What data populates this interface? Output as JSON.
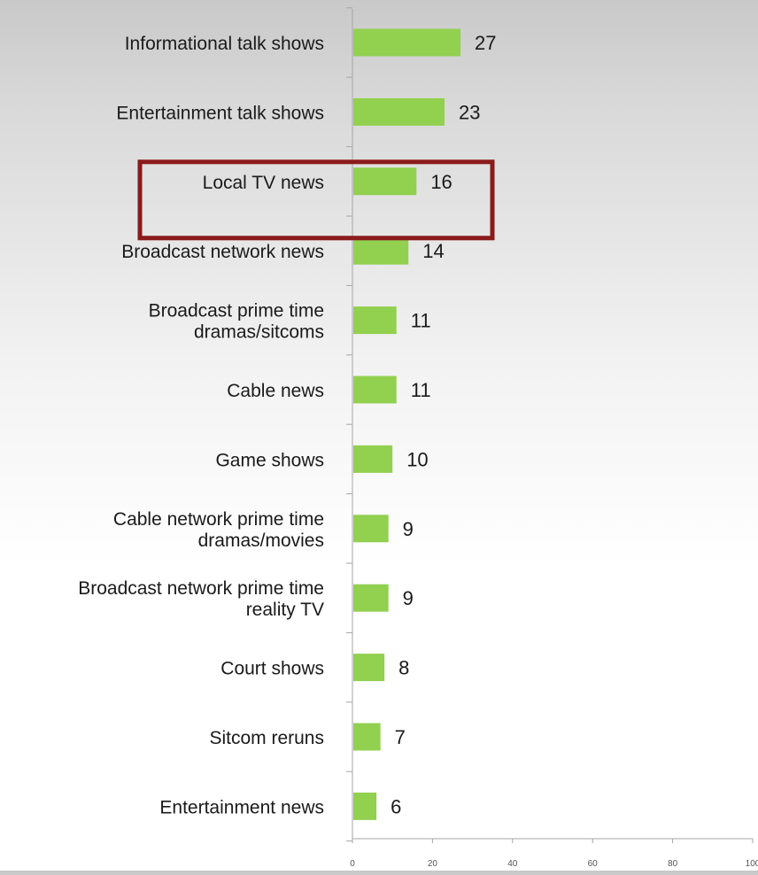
{
  "chart_data": {
    "type": "bar",
    "orientation": "horizontal",
    "categories": [
      [
        "Informational talk shows"
      ],
      [
        "Entertainment talk shows"
      ],
      [
        "Local TV news"
      ],
      [
        "Broadcast network news"
      ],
      [
        "Broadcast prime time",
        "dramas/sitcoms"
      ],
      [
        "Cable news"
      ],
      [
        "Game shows"
      ],
      [
        "Cable network prime time",
        "dramas/movies"
      ],
      [
        "Broadcast network prime time",
        "reality TV"
      ],
      [
        "Court shows"
      ],
      [
        "Sitcom reruns"
      ],
      [
        "Entertainment news"
      ]
    ],
    "values": [
      27,
      23,
      16,
      14,
      11,
      11,
      10,
      9,
      9,
      8,
      7,
      6
    ],
    "data_labels": [
      "27",
      "23",
      "16",
      "14",
      "11",
      "11",
      "10",
      "9",
      "9",
      "8",
      "7",
      "6"
    ],
    "xlim": [
      0,
      100
    ],
    "x_ticks": [
      "0",
      "20",
      "40",
      "60",
      "80",
      "100"
    ],
    "highlight_category_index": 2,
    "grid": false,
    "colors": {
      "bar": "#92d050",
      "axis": "#a6a6a6",
      "label": "#1a1a1a",
      "tick_label": "#555555",
      "highlight_box": "#8b1a1a"
    }
  }
}
